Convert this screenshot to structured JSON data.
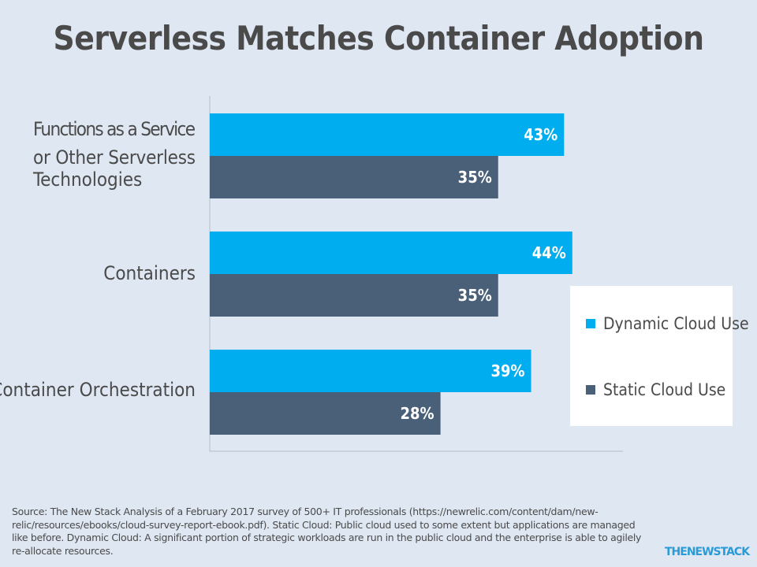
{
  "title": "Serverless Matches Container Adoption",
  "chart_data": {
    "type": "bar",
    "orientation": "horizontal",
    "categories": [
      "Functions as a Service or Other Serverless Technologies",
      "Containers",
      "Container Orchestration"
    ],
    "series": [
      {
        "name": "Dynamic Cloud Use",
        "values": [
          43,
          44,
          39
        ],
        "color": "#00aeef"
      },
      {
        "name": "Static Cloud Use",
        "values": [
          35,
          35,
          28
        ],
        "color": "#4a5f78"
      }
    ],
    "value_format": "%",
    "xlim": [
      0,
      50
    ],
    "grid": false,
    "legend_position": "right"
  },
  "legend": {
    "items": [
      {
        "label": "Dynamic Cloud Use",
        "color": "#00aeef"
      },
      {
        "label": "Static Cloud Use",
        "color": "#4a5f78"
      }
    ]
  },
  "source": "Source: The New Stack Analysis of a February 2017 survey of 500+ IT professionals (https://newrelic.com/content/dam/new-relic/resources/ebooks/cloud-survey-report-ebook.pdf). Static Cloud: Public cloud used to some extent but applications are managed like before. Dynamic Cloud: A significant portion of strategic workloads are run in the public cloud and the enterprise is able to agilely re-allocate resources.",
  "logo": "THENEWSTACK"
}
